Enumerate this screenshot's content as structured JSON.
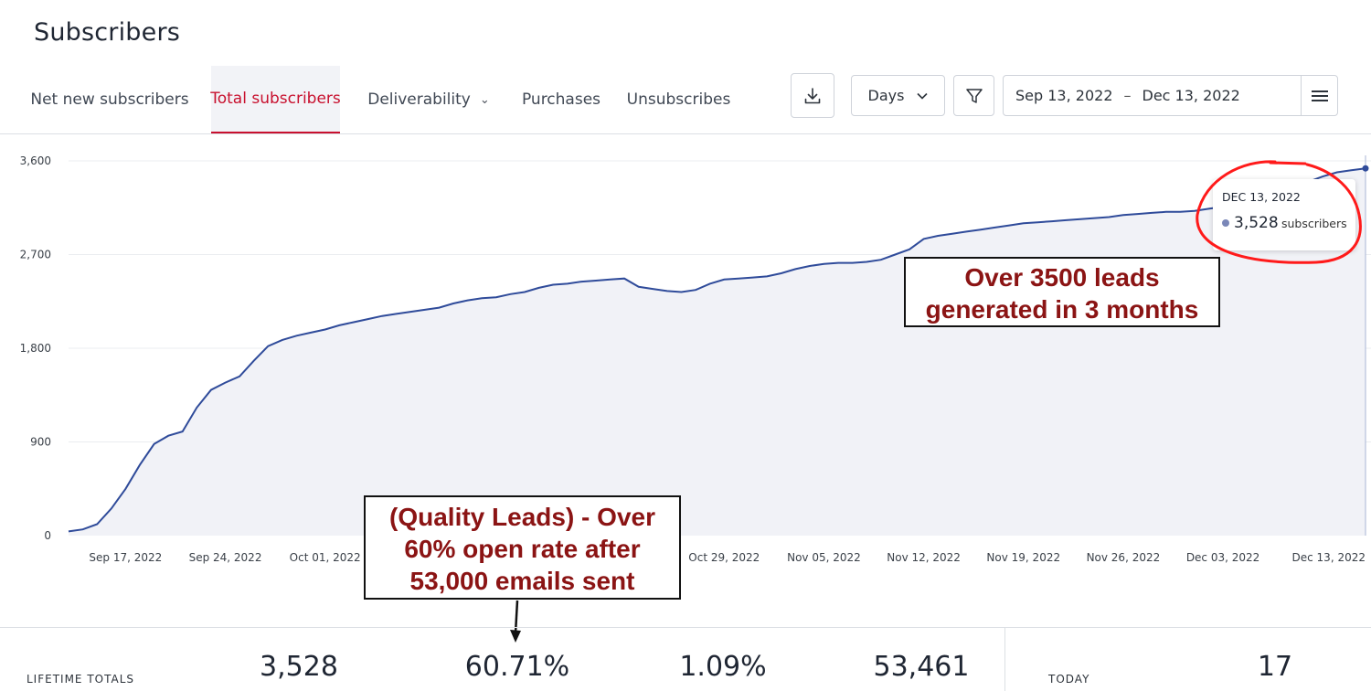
{
  "header": {
    "title": "Subscribers"
  },
  "tabs": [
    {
      "label": "Net new subscribers",
      "active": false
    },
    {
      "label": "Total subscribers",
      "active": true
    },
    {
      "label": "Deliverability",
      "active": false,
      "has_dropdown": true
    },
    {
      "label": "Purchases",
      "active": false
    },
    {
      "label": "Unsubscribes",
      "active": false
    }
  ],
  "toolbar": {
    "download_icon": "download-icon",
    "granularity": "Days",
    "filter_icon": "filter-icon",
    "date_start": "Sep 13, 2022",
    "date_sep": "–",
    "date_end": "Dec 13, 2022",
    "menu_icon": "hamburger-icon"
  },
  "colors": {
    "accent": "#c8102e",
    "line": "#2f4b9a",
    "area": "#f1f2f7",
    "annotation_text": "#8b1414",
    "highlight_circle": "#ff1a1a"
  },
  "chart_data": {
    "type": "area",
    "title": "",
    "ylim": [
      0,
      3600
    ],
    "y_ticks": [
      "0",
      "900",
      "1,800",
      "2,700",
      "3,600"
    ],
    "x_tick_labels": [
      "Sep 17, 2022",
      "Sep 24, 2022",
      "Oct 01, 2022",
      "Oct 29, 2022",
      "Nov 05, 2022",
      "Nov 12, 2022",
      "Nov 19, 2022",
      "Nov 26, 2022",
      "Dec 03, 2022",
      "Dec 13, 2022"
    ],
    "grid": "horizontal",
    "series": [
      {
        "x": [
          "2022-09-13",
          "2022-09-14",
          "2022-09-15",
          "2022-09-16",
          "2022-09-17",
          "2022-09-18",
          "2022-09-19",
          "2022-09-20",
          "2022-09-21",
          "2022-09-22",
          "2022-09-23",
          "2022-09-24",
          "2022-09-25",
          "2022-09-26",
          "2022-09-27",
          "2022-09-28",
          "2022-09-29",
          "2022-09-30",
          "2022-10-01",
          "2022-10-02",
          "2022-10-03",
          "2022-10-04",
          "2022-10-05",
          "2022-10-06",
          "2022-10-07",
          "2022-10-08",
          "2022-10-09",
          "2022-10-10",
          "2022-10-11",
          "2022-10-12",
          "2022-10-13",
          "2022-10-14",
          "2022-10-15",
          "2022-10-16",
          "2022-10-17",
          "2022-10-18",
          "2022-10-19",
          "2022-10-20",
          "2022-10-21",
          "2022-10-22",
          "2022-10-23",
          "2022-10-24",
          "2022-10-25",
          "2022-10-26",
          "2022-10-27",
          "2022-10-28",
          "2022-10-29",
          "2022-10-30",
          "2022-10-31",
          "2022-11-01",
          "2022-11-02",
          "2022-11-03",
          "2022-11-04",
          "2022-11-05",
          "2022-11-06",
          "2022-11-07",
          "2022-11-08",
          "2022-11-09",
          "2022-11-10",
          "2022-11-11",
          "2022-11-12",
          "2022-11-13",
          "2022-11-14",
          "2022-11-15",
          "2022-11-16",
          "2022-11-17",
          "2022-11-18",
          "2022-11-19",
          "2022-11-20",
          "2022-11-21",
          "2022-11-22",
          "2022-11-23",
          "2022-11-24",
          "2022-11-25",
          "2022-11-26",
          "2022-11-27",
          "2022-11-28",
          "2022-11-29",
          "2022-11-30",
          "2022-12-01",
          "2022-12-02",
          "2022-12-03",
          "2022-12-04",
          "2022-12-05",
          "2022-12-06",
          "2022-12-07",
          "2022-12-08",
          "2022-12-09",
          "2022-12-10",
          "2022-12-11",
          "2022-12-12",
          "2022-12-13"
        ],
        "values": [
          40,
          60,
          110,
          260,
          450,
          680,
          880,
          960,
          1000,
          1230,
          1400,
          1470,
          1530,
          1680,
          1820,
          1880,
          1920,
          1950,
          1980,
          2020,
          2050,
          2080,
          2110,
          2130,
          2150,
          2170,
          2190,
          2230,
          2260,
          2280,
          2290,
          2320,
          2340,
          2380,
          2410,
          2420,
          2440,
          2450,
          2460,
          2470,
          2390,
          2370,
          2350,
          2340,
          2360,
          2420,
          2460,
          2470,
          2480,
          2490,
          2520,
          2560,
          2590,
          2610,
          2620,
          2620,
          2630,
          2650,
          2700,
          2750,
          2850,
          2880,
          2900,
          2920,
          2940,
          2960,
          2980,
          3000,
          3010,
          3020,
          3030,
          3040,
          3050,
          3060,
          3080,
          3090,
          3100,
          3110,
          3110,
          3120,
          3140,
          3160,
          3200,
          3240,
          3280,
          3320,
          3360,
          3400,
          3450,
          3490,
          3510,
          3528
        ]
      }
    ],
    "tooltip": {
      "date": "DEC 13, 2022",
      "value": "3,528",
      "unit": "subscribers"
    }
  },
  "annotations": {
    "a_line1": "Over 3500 leads",
    "a_line2": "generated in 3 months",
    "b_line1": "(Quality Leads) - Over",
    "b_line2": "60% open rate after",
    "b_line3": "53,000 emails sent"
  },
  "totals": {
    "lifetime_label": "LIFETIME TOTALS",
    "subscribers": "3,528",
    "open_rate": "60.71%",
    "click_rate": "1.09%",
    "emails_sent": "53,461",
    "today_label": "TODAY",
    "today_value": "17"
  }
}
